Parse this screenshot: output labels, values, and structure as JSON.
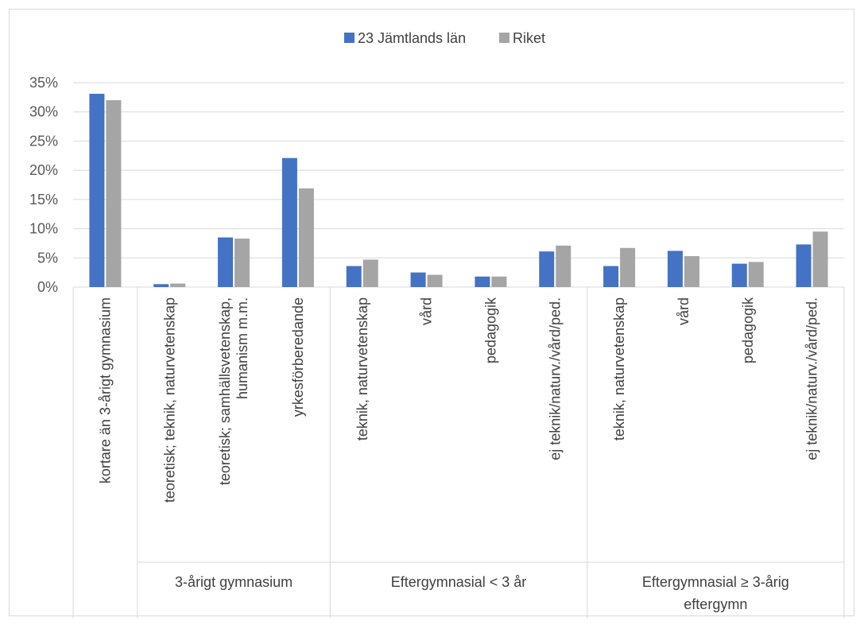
{
  "chart_data": {
    "type": "bar",
    "title": "",
    "xlabel": "",
    "ylabel": "",
    "ylim": [
      0,
      0.35
    ],
    "y_ticks": [
      "0%",
      "5%",
      "10%",
      "15%",
      "20%",
      "25%",
      "30%",
      "35%"
    ],
    "y_tick_values": [
      0,
      0.05,
      0.1,
      0.15,
      0.2,
      0.25,
      0.3,
      0.35
    ],
    "grid": true,
    "legend_position": "top",
    "categories": [
      "kortare än 3-årigt gymnasium",
      "teoretisk; teknik, naturvetenskap",
      "teoretisk; samhällsvetenskap, humanism m.m.",
      "yrkesförberedande",
      "teknik, naturvetenskap",
      "vård",
      "pedagogik",
      "ej teknik/naturv./vård/ped.",
      "teknik, naturvetenskap",
      "vård",
      "pedagogik",
      "ej teknik/naturv./vård/ped."
    ],
    "category_lines": [
      [
        "kortare än 3-årigt gymnasium"
      ],
      [
        "teoretisk; teknik, naturvetenskap"
      ],
      [
        "teoretisk; samhällsvetenskap,",
        "humanism m.m."
      ],
      [
        "yrkesförberedande"
      ],
      [
        "teknik, naturvetenskap"
      ],
      [
        "vård"
      ],
      [
        "pedagogik"
      ],
      [
        "ej teknik/naturv./vård/ped."
      ],
      [
        "teknik, naturvetenskap"
      ],
      [
        "vård"
      ],
      [
        "pedagogik"
      ],
      [
        "ej teknik/naturv./vård/ped."
      ]
    ],
    "groups": [
      {
        "label_lines": [
          ""
        ],
        "start": 0,
        "end": 0
      },
      {
        "label_lines": [
          "3-årigt gymnasium"
        ],
        "start": 1,
        "end": 3
      },
      {
        "label_lines": [
          "Eftergymnasial < 3 år"
        ],
        "start": 4,
        "end": 7
      },
      {
        "label_lines": [
          "Eftergymnasial ≥ 3-årig",
          "eftergymn"
        ],
        "start": 8,
        "end": 11
      }
    ],
    "series": [
      {
        "name": "23 Jämtlands län",
        "color": "#4472c4",
        "values": [
          0.331,
          0.005,
          0.085,
          0.221,
          0.036,
          0.025,
          0.018,
          0.061,
          0.036,
          0.062,
          0.04,
          0.073
        ]
      },
      {
        "name": "Riket",
        "color": "#a5a5a5",
        "values": [
          0.32,
          0.006,
          0.083,
          0.169,
          0.047,
          0.021,
          0.018,
          0.071,
          0.067,
          0.053,
          0.043,
          0.095
        ]
      }
    ]
  }
}
